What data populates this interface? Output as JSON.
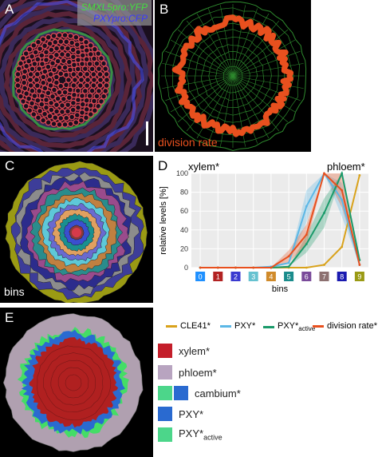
{
  "panelA": {
    "letter": "A",
    "legend_line1": "SMXL5pro:YFP",
    "legend_line2": "PXYpro:CFP",
    "colors": {
      "bg": "#1a0f1e",
      "red": "#e04a55",
      "green": "#37d637",
      "blue": "#4a52ff"
    }
  },
  "panelB": {
    "letter": "B",
    "caption": "division rate",
    "colors": {
      "bg": "#000000",
      "mesh": "#2e8a2e",
      "ring": "#e8501e"
    }
  },
  "panelC": {
    "letter": "C",
    "caption": "bins",
    "ring_colors": [
      "#9a9a14",
      "#3d3d99",
      "#8c8c8c",
      "#2c2c8c",
      "#9a4b8c",
      "#2a8c8c",
      "#c08040",
      "#5ec8d8",
      "#6a6ad0",
      "#e0a060",
      "#1a9090",
      "#3a4fd0",
      "#8a3a3a"
    ]
  },
  "panelD": {
    "letter": "D",
    "top_left": "xylem*",
    "top_right": "phloem*",
    "chart_data": {
      "type": "line",
      "title": "",
      "xlabel": "bins",
      "ylabel": "relative levels [%]",
      "ylim": [
        0,
        100
      ],
      "yticks": [
        0,
        20,
        40,
        60,
        80,
        100
      ],
      "categories": [
        "0",
        "1",
        "2",
        "3",
        "4",
        "5",
        "6",
        "7",
        "8",
        "9"
      ],
      "category_colors": [
        "#1e90ff",
        "#b22222",
        "#3a3ad0",
        "#66c2d0",
        "#d08a2a",
        "#1a8c8c",
        "#7a4a9a",
        "#8c7070",
        "#1a1ab0",
        "#9a9a14"
      ],
      "series": [
        {
          "name": "CLE41*",
          "color": "#d9a21b",
          "values": [
            0,
            0,
            0,
            0,
            0,
            0,
            0,
            3,
            22,
            98
          ]
        },
        {
          "name": "PXY*",
          "color": "#5bb7e6",
          "values": [
            0,
            0,
            0,
            0,
            1,
            5,
            65,
            100,
            72,
            3
          ]
        },
        {
          "name": "PXY*active",
          "color": "#1a9a6a",
          "values": [
            0,
            0,
            0,
            0,
            0,
            1,
            25,
            58,
            100,
            8
          ]
        },
        {
          "name": "division rate*",
          "color": "#e8501e",
          "values": [
            0,
            0,
            0,
            0,
            0,
            12,
            35,
            100,
            82,
            3
          ]
        }
      ]
    },
    "legend": [
      {
        "label": "CLE41*",
        "sub": ""
      },
      {
        "label": "PXY*",
        "sub": ""
      },
      {
        "label": "PXY*",
        "sub": "active"
      },
      {
        "label": "division rate*",
        "sub": ""
      }
    ]
  },
  "panelE": {
    "letter": "E",
    "colors": {
      "bg": "#000000",
      "phloem": "#b0a0b0",
      "cambium": "#2a6ad0",
      "active": "#44dd66",
      "xylem": "#b02020"
    }
  },
  "legendE": [
    {
      "label": "xylem*",
      "sub": "",
      "colors": [
        "#c41e2a"
      ]
    },
    {
      "label": "phloem*",
      "sub": "",
      "colors": [
        "#b8a4c0"
      ]
    },
    {
      "label": "cambium*",
      "sub": "",
      "colors": [
        "#4cd68a",
        "#2a6ad0"
      ]
    },
    {
      "label": "PXY*",
      "sub": "",
      "colors": [
        "#2a6ad0"
      ]
    },
    {
      "label": "PXY*",
      "sub": "active",
      "colors": [
        "#4cd68a"
      ]
    }
  ]
}
